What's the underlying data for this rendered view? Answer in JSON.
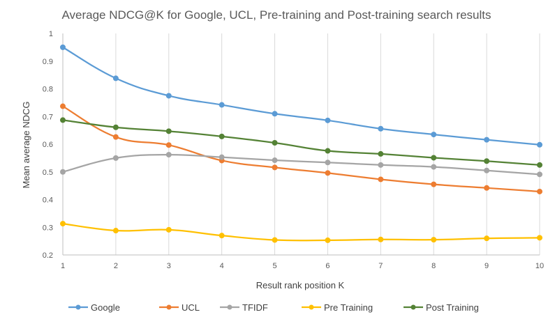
{
  "chart_data": {
    "type": "line",
    "title": "Average NDCG@K for Google, UCL, Pre-training and Post-training search results",
    "xlabel": "Result rank position K",
    "ylabel": "Mean average NDCG",
    "x": [
      1,
      2,
      3,
      4,
      5,
      6,
      7,
      8,
      9,
      10
    ],
    "xlim": [
      1,
      10
    ],
    "ylim": [
      0.2,
      1.0
    ],
    "yticks": [
      "0.2",
      "0.3",
      "0.4",
      "0.5",
      "0.6",
      "0.7",
      "0.8",
      "0.9",
      "1"
    ],
    "xticks": [
      "1",
      "2",
      "3",
      "4",
      "5",
      "6",
      "7",
      "8",
      "9",
      "10"
    ],
    "grid": "vertical",
    "legend_position": "bottom",
    "series": [
      {
        "name": "Google",
        "color": "#5b9bd5",
        "values": [
          0.95,
          0.838,
          0.775,
          0.742,
          0.71,
          0.686,
          0.656,
          0.635,
          0.616,
          0.598
        ]
      },
      {
        "name": "UCL",
        "color": "#ed7d31",
        "values": [
          0.737,
          0.626,
          0.597,
          0.541,
          0.516,
          0.496,
          0.473,
          0.455,
          0.442,
          0.429
        ]
      },
      {
        "name": "TFIDF",
        "color": "#a5a5a5",
        "values": [
          0.5,
          0.55,
          0.562,
          0.553,
          0.542,
          0.534,
          0.525,
          0.518,
          0.505,
          0.491
        ]
      },
      {
        "name": "Pre Training",
        "color": "#ffc000",
        "values": [
          0.313,
          0.288,
          0.291,
          0.27,
          0.254,
          0.253,
          0.256,
          0.255,
          0.26,
          0.262
        ]
      },
      {
        "name": "Post Training",
        "color": "#548235",
        "values": [
          0.687,
          0.661,
          0.647,
          0.628,
          0.605,
          0.576,
          0.565,
          0.551,
          0.539,
          0.525
        ]
      }
    ]
  }
}
